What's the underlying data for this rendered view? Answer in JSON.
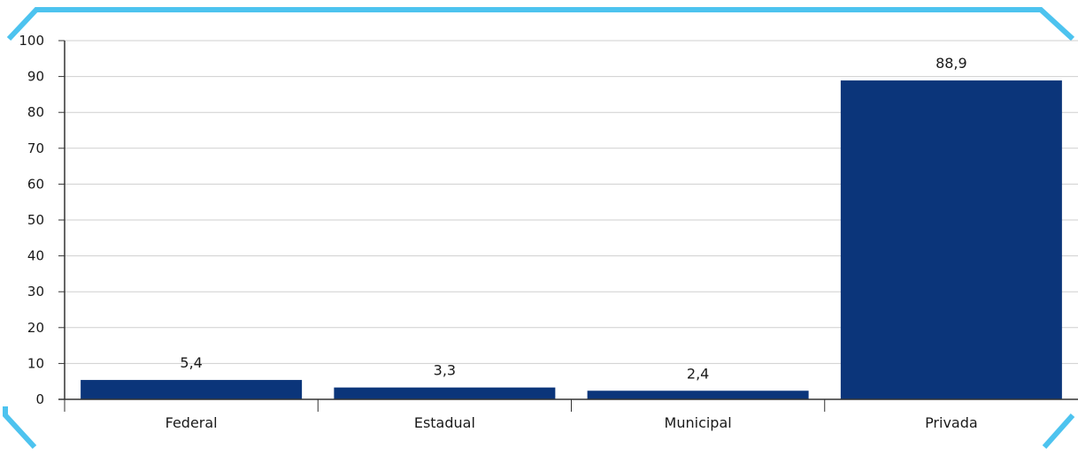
{
  "colors": {
    "frame": "#4dc3ef",
    "bar": "#0b357a",
    "grid": "#cfcfcf",
    "axis": "#333333"
  },
  "chart_data": {
    "type": "bar",
    "title": "",
    "xlabel": "",
    "ylabel": "",
    "categories": [
      "Federal",
      "Estadual",
      "Municipal",
      "Privada"
    ],
    "values": [
      5.4,
      3.3,
      2.4,
      88.9
    ],
    "data_labels": [
      "5,4",
      "3,3",
      "2,4",
      "88,9"
    ],
    "ylim": [
      0,
      100
    ],
    "yticks": [
      0,
      10,
      20,
      30,
      40,
      50,
      60,
      70,
      80,
      90,
      100
    ],
    "grid": true,
    "legend": "none"
  }
}
